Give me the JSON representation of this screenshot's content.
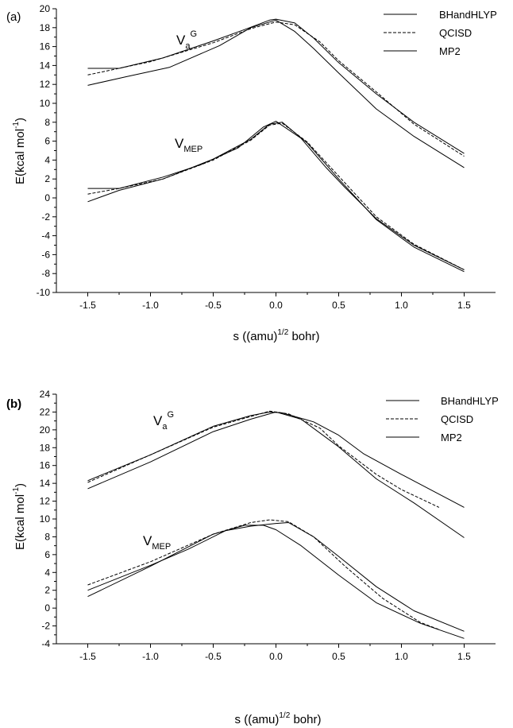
{
  "chart_data": [
    {
      "type": "line",
      "panel_label": "(a)",
      "xlabel": "s ((amu)",
      "xlabel_sup": "1/2",
      "xlabel_tail": " bohr)",
      "ylabel": "E(kcal mol",
      "ylabel_sup": "-1",
      "ylabel_tail": ")",
      "xlim": [
        -1.75,
        1.75
      ],
      "ylim": [
        -10,
        20
      ],
      "x_ticks": [
        -1.5,
        -1.0,
        -0.5,
        0.0,
        0.5,
        1.0,
        1.5
      ],
      "x_tick_labels": [
        "-1.5",
        "-1.0",
        "-0.5",
        "0.0",
        "0.5",
        "1.0",
        "1.5"
      ],
      "y_ticks": [
        -10,
        -8,
        -6,
        -4,
        -2,
        0,
        2,
        4,
        6,
        8,
        10,
        12,
        14,
        16,
        18,
        20
      ],
      "y_tick_labels": [
        "-10",
        "-8",
        "-6",
        "-4",
        "-2",
        "0",
        "2",
        "4",
        "6",
        "8",
        "10",
        "12",
        "14",
        "16",
        "18",
        "20"
      ],
      "grid": false,
      "legend_position": "top-right",
      "legend": [
        {
          "label": "BHandHLYP",
          "style": "solid"
        },
        {
          "label": "QCISD",
          "style": "dashed"
        },
        {
          "label": "MP2",
          "style": "solid"
        }
      ],
      "curve_labels": {
        "upper": {
          "main": "V",
          "sub": "a",
          "sup": "G"
        },
        "lower": {
          "main": "V",
          "sub": "MEP",
          "sup": ""
        }
      },
      "series": [
        {
          "group": "Va_G",
          "style": "solid",
          "x": [
            -1.5,
            -1.25,
            -0.9,
            -0.5,
            -0.25,
            -0.05,
            0.0,
            0.15,
            0.3,
            0.5,
            0.8,
            1.1,
            1.5
          ],
          "y": [
            13.7,
            13.7,
            14.8,
            16.6,
            17.8,
            18.8,
            18.9,
            18.5,
            16.9,
            14.3,
            11.0,
            8.0,
            4.7
          ]
        },
        {
          "group": "Va_G",
          "style": "dashed",
          "x": [
            -1.5,
            -1.0,
            -0.5,
            -0.2,
            0.0,
            0.15,
            0.35,
            0.5,
            0.8,
            1.1,
            1.5
          ],
          "y": [
            13.0,
            14.4,
            16.4,
            17.9,
            18.6,
            18.3,
            16.5,
            14.5,
            11.2,
            7.8,
            4.4
          ]
        },
        {
          "group": "Va_G",
          "style": "solid",
          "x": [
            -1.5,
            -1.2,
            -0.85,
            -0.45,
            -0.2,
            0.0,
            0.15,
            0.3,
            0.5,
            0.8,
            1.1,
            1.5
          ],
          "y": [
            11.9,
            12.8,
            13.8,
            16.1,
            18.0,
            18.8,
            17.6,
            15.8,
            13.2,
            9.4,
            6.5,
            3.2
          ]
        },
        {
          "group": "V_MEP",
          "style": "solid",
          "x": [
            -1.5,
            -1.25,
            -0.9,
            -0.6,
            -0.3,
            -0.1,
            0.0,
            0.2,
            0.4,
            0.55,
            0.8,
            1.1,
            1.5
          ],
          "y": [
            1.0,
            1.0,
            2.2,
            3.5,
            5.3,
            7.5,
            8.1,
            6.3,
            3.2,
            1.1,
            -2.2,
            -5.0,
            -7.6
          ]
        },
        {
          "group": "V_MEP",
          "style": "dashed",
          "x": [
            -1.5,
            -1.25,
            -0.9,
            -0.5,
            -0.2,
            -0.05,
            0.05,
            0.25,
            0.5,
            0.8,
            1.1,
            1.5
          ],
          "y": [
            0.4,
            1.0,
            2.0,
            4.0,
            6.1,
            7.7,
            7.9,
            5.9,
            2.3,
            -2.0,
            -4.9,
            -7.6
          ]
        },
        {
          "group": "V_MEP",
          "style": "solid",
          "x": [
            -1.5,
            -1.25,
            -0.9,
            -0.5,
            -0.2,
            -0.05,
            0.05,
            0.25,
            0.5,
            0.8,
            1.1,
            1.5
          ],
          "y": [
            -0.4,
            0.8,
            2.0,
            4.1,
            6.2,
            7.8,
            8.0,
            5.8,
            2.0,
            -2.3,
            -5.2,
            -7.8
          ]
        }
      ]
    },
    {
      "type": "line",
      "panel_label": "(b)",
      "xlabel": "s ((amu)",
      "xlabel_sup": "1/2",
      "xlabel_tail": " bohr)",
      "ylabel": "E(kcal mol",
      "ylabel_sup": "-1",
      "ylabel_tail": ")",
      "xlim": [
        -1.75,
        1.75
      ],
      "ylim": [
        -4,
        24
      ],
      "x_ticks": [
        -1.5,
        -1.0,
        -0.5,
        0.0,
        0.5,
        1.0,
        1.5
      ],
      "x_tick_labels": [
        "-1.5",
        "-1.0",
        "-0.5",
        "0.0",
        "0.5",
        "1.0",
        "1.5"
      ],
      "y_ticks": [
        -4,
        -2,
        0,
        2,
        4,
        6,
        8,
        10,
        12,
        14,
        16,
        18,
        20,
        22,
        24
      ],
      "y_tick_labels": [
        "-4",
        "-2",
        "0",
        "2",
        "4",
        "6",
        "8",
        "10",
        "12",
        "14",
        "16",
        "18",
        "20",
        "22",
        "24"
      ],
      "grid": false,
      "legend_position": "top-right",
      "legend": [
        {
          "label": "BHandHLYP",
          "style": "solid"
        },
        {
          "label": "QCISD",
          "style": "dashed"
        },
        {
          "label": "MP2",
          "style": "solid"
        }
      ],
      "curve_labels": {
        "upper": {
          "main": "V",
          "sub": "a",
          "sup": "G"
        },
        "lower": {
          "main": "V",
          "sub": "MEP",
          "sup": ""
        }
      },
      "series": [
        {
          "group": "Va_G",
          "style": "solid",
          "x": [
            -1.5,
            -1.0,
            -0.5,
            -0.2,
            -0.05,
            0.05,
            0.3,
            0.5,
            0.7,
            1.0,
            1.5
          ],
          "y": [
            14.3,
            17.2,
            20.4,
            21.6,
            22.0,
            21.9,
            20.9,
            19.4,
            17.3,
            15.0,
            11.3
          ]
        },
        {
          "group": "Va_G",
          "style": "dashed",
          "x": [
            -1.5,
            -1.0,
            -0.5,
            -0.2,
            -0.05,
            0.1,
            0.35,
            0.5,
            0.8,
            1.0,
            1.3
          ],
          "y": [
            14.1,
            17.2,
            20.3,
            21.5,
            22.1,
            21.8,
            20.2,
            18.2,
            15.0,
            13.3,
            11.3
          ]
        },
        {
          "group": "Va_G",
          "style": "solid",
          "x": [
            -1.5,
            -1.0,
            -0.5,
            -0.2,
            0.0,
            0.2,
            0.5,
            0.8,
            1.1,
            1.5
          ],
          "y": [
            13.4,
            16.4,
            19.8,
            21.2,
            22.0,
            21.2,
            18.1,
            14.5,
            11.8,
            7.9
          ]
        },
        {
          "group": "V_MEP",
          "style": "solid",
          "x": [
            -1.5,
            -1.0,
            -0.7,
            -0.4,
            -0.2,
            0.0,
            0.1,
            0.3,
            0.5,
            0.8,
            1.1,
            1.5
          ],
          "y": [
            2.0,
            4.8,
            6.6,
            8.7,
            9.2,
            9.5,
            9.6,
            8.0,
            5.8,
            2.4,
            -0.3,
            -2.6
          ]
        },
        {
          "group": "V_MEP",
          "style": "dashed",
          "x": [
            -1.5,
            -1.0,
            -0.5,
            -0.2,
            -0.05,
            0.1,
            0.3,
            0.55,
            0.85,
            1.15,
            1.3
          ],
          "y": [
            2.6,
            5.2,
            8.3,
            9.6,
            9.9,
            9.7,
            8.0,
            4.7,
            1.1,
            -1.6,
            -2.4
          ]
        },
        {
          "group": "V_MEP",
          "style": "solid",
          "x": [
            -1.5,
            -1.0,
            -0.5,
            -0.25,
            -0.1,
            0.0,
            0.2,
            0.5,
            0.8,
            1.15,
            1.5
          ],
          "y": [
            1.3,
            4.7,
            8.3,
            9.3,
            9.3,
            8.8,
            7.0,
            3.7,
            0.6,
            -1.7,
            -3.4
          ]
        }
      ]
    }
  ]
}
